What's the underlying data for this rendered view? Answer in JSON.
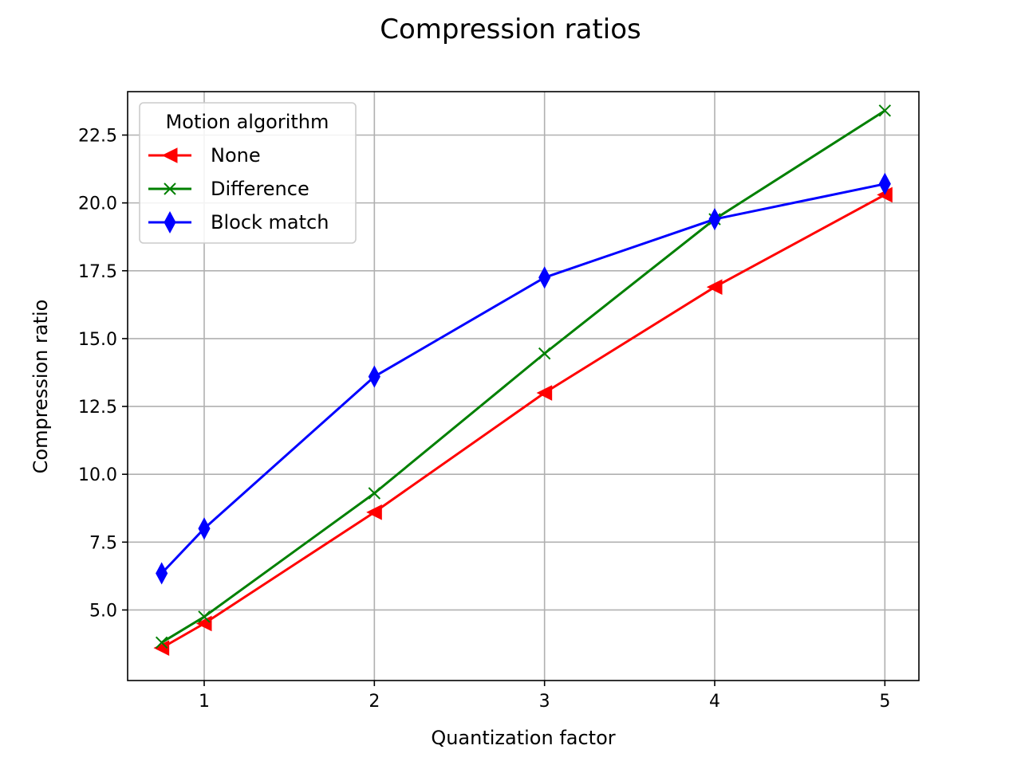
{
  "chart_data": {
    "type": "line",
    "title": "Compression ratios",
    "xlabel": "Quantization factor",
    "ylabel": "Compression ratio",
    "xlim": [
      0.55,
      5.2
    ],
    "ylim": [
      2.4,
      24.1
    ],
    "xticks": [
      1,
      2,
      3,
      4,
      5
    ],
    "xtick_labels": [
      "1",
      "2",
      "3",
      "4",
      "5"
    ],
    "yticks": [
      5.0,
      7.5,
      10.0,
      12.5,
      15.0,
      17.5,
      20.0,
      22.5
    ],
    "ytick_labels": [
      "5.0",
      "7.5",
      "10.0",
      "12.5",
      "15.0",
      "17.5",
      "20.0",
      "22.5"
    ],
    "grid": true,
    "legend": {
      "title": "Motion algorithm",
      "placement": "upper-left"
    },
    "x": [
      0.75,
      1,
      2,
      3,
      4,
      5
    ],
    "series": [
      {
        "name": "None",
        "color": "#ff0000",
        "marker": "triangle-left",
        "values": [
          3.6,
          4.5,
          8.6,
          13.0,
          16.9,
          20.3
        ]
      },
      {
        "name": "Difference",
        "color": "#008000",
        "marker": "x",
        "values": [
          3.8,
          4.75,
          9.3,
          14.45,
          19.4,
          23.4
        ]
      },
      {
        "name": "Block match",
        "color": "#0000ff",
        "marker": "thin-diamond",
        "values": [
          6.35,
          8.0,
          13.6,
          17.25,
          19.4,
          20.7
        ]
      }
    ]
  }
}
